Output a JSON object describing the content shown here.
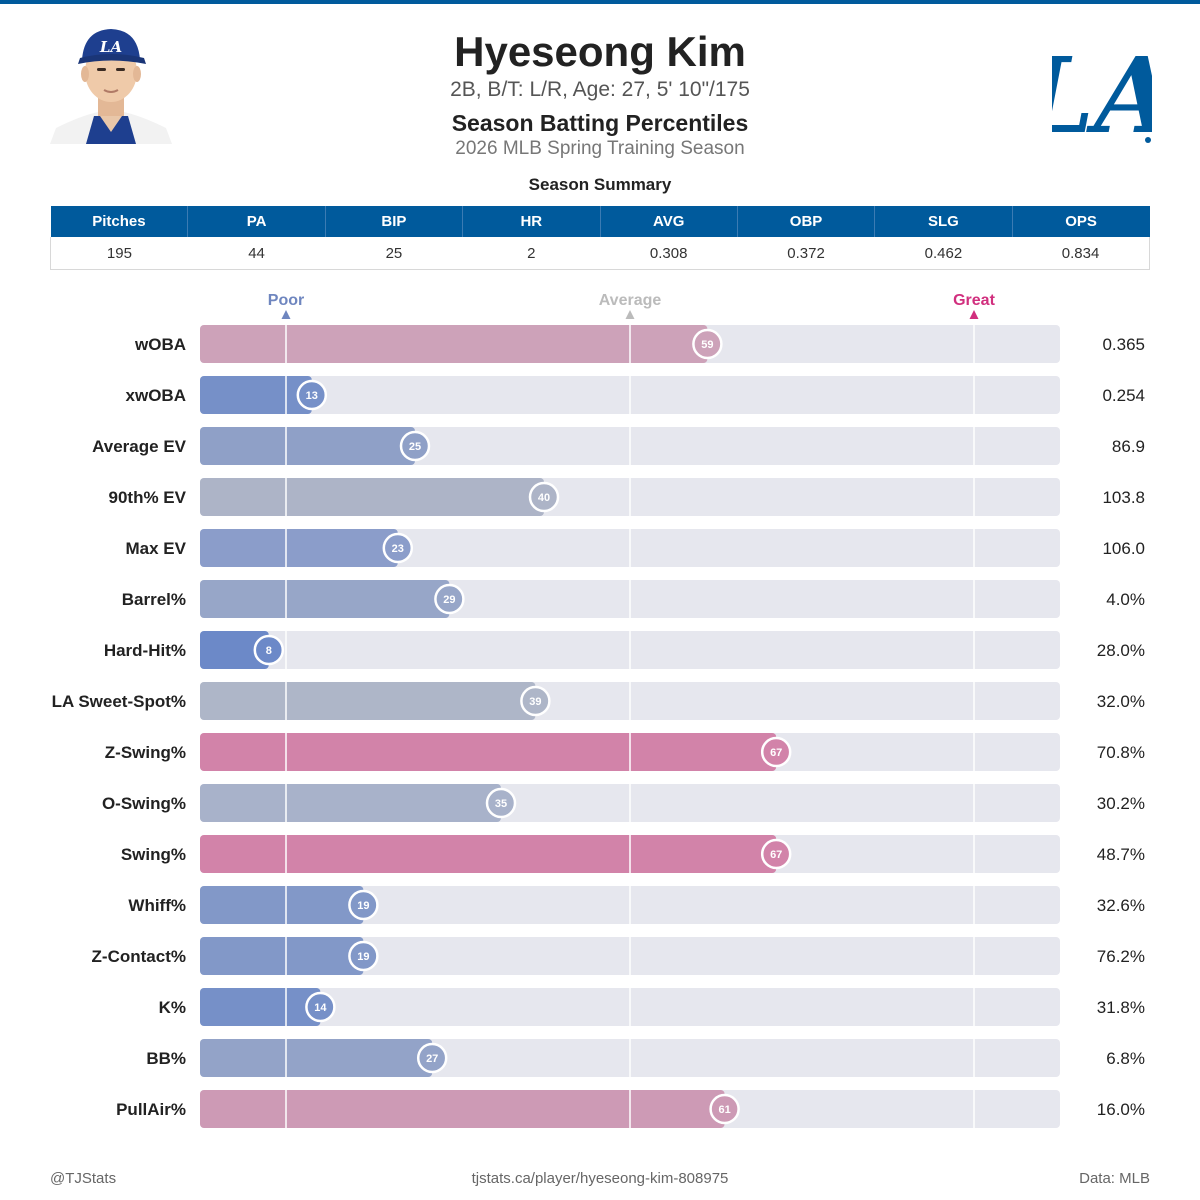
{
  "header": {
    "name": "Hyeseong Kim",
    "bio": "2B, B/T: L/R, Age: 27, 5' 10\"/175",
    "subtitle": "Season Batting Percentiles",
    "season": "2026 MLB Spring Training Season",
    "summary_title": "Season Summary",
    "team_logo_text": "LA",
    "cap_logo_text": "LA"
  },
  "summary": {
    "headers": [
      "Pitches",
      "PA",
      "BIP",
      "HR",
      "AVG",
      "OBP",
      "SLG",
      "OPS"
    ],
    "values": [
      "195",
      "44",
      "25",
      "2",
      "0.308",
      "0.372",
      "0.462",
      "0.834"
    ]
  },
  "chart_data": {
    "type": "bar",
    "orientation": "horizontal",
    "title": "Season Batting Percentiles",
    "xlim": [
      0,
      100
    ],
    "markers": [
      {
        "label": "Poor",
        "value": 10,
        "color": "#6f86bf"
      },
      {
        "label": "Average",
        "value": 50,
        "color": "#bbbbbb"
      },
      {
        "label": "Great",
        "value": 90,
        "color": "#d12f7e"
      }
    ],
    "categories": [
      "wOBA",
      "xwOBA",
      "Average EV",
      "90th% EV",
      "Max EV",
      "Barrel%",
      "Hard-Hit%",
      "LA Sweet-Spot%",
      "Z-Swing%",
      "O-Swing%",
      "Swing%",
      "Whiff%",
      "Z-Contact%",
      "K%",
      "BB%",
      "PullAir%"
    ],
    "percentiles": [
      59,
      13,
      25,
      40,
      23,
      29,
      8,
      39,
      67,
      35,
      67,
      19,
      19,
      14,
      27,
      61
    ],
    "stat_values": [
      "0.365",
      "0.254",
      "86.9",
      "103.8",
      "106.0",
      "4.0%",
      "28.0%",
      "32.0%",
      "70.8%",
      "30.2%",
      "48.7%",
      "32.6%",
      "76.2%",
      "31.8%",
      "6.8%",
      "16.0%"
    ],
    "bar_colors": [
      "#cda2b9",
      "#7690c8",
      "#8fa0c7",
      "#adb4c7",
      "#8b9dca",
      "#97a6c8",
      "#6c89c8",
      "#aeb6c8",
      "#d283a9",
      "#a8b2ca",
      "#d283a9",
      "#8298c8",
      "#8298c8",
      "#7690c8",
      "#93a3c8",
      "#cd9ab5"
    ]
  },
  "footer": {
    "left": "@TJStats",
    "center": "tjstats.ca/player/hyeseong-kim-808975",
    "right": "Data: MLB"
  }
}
